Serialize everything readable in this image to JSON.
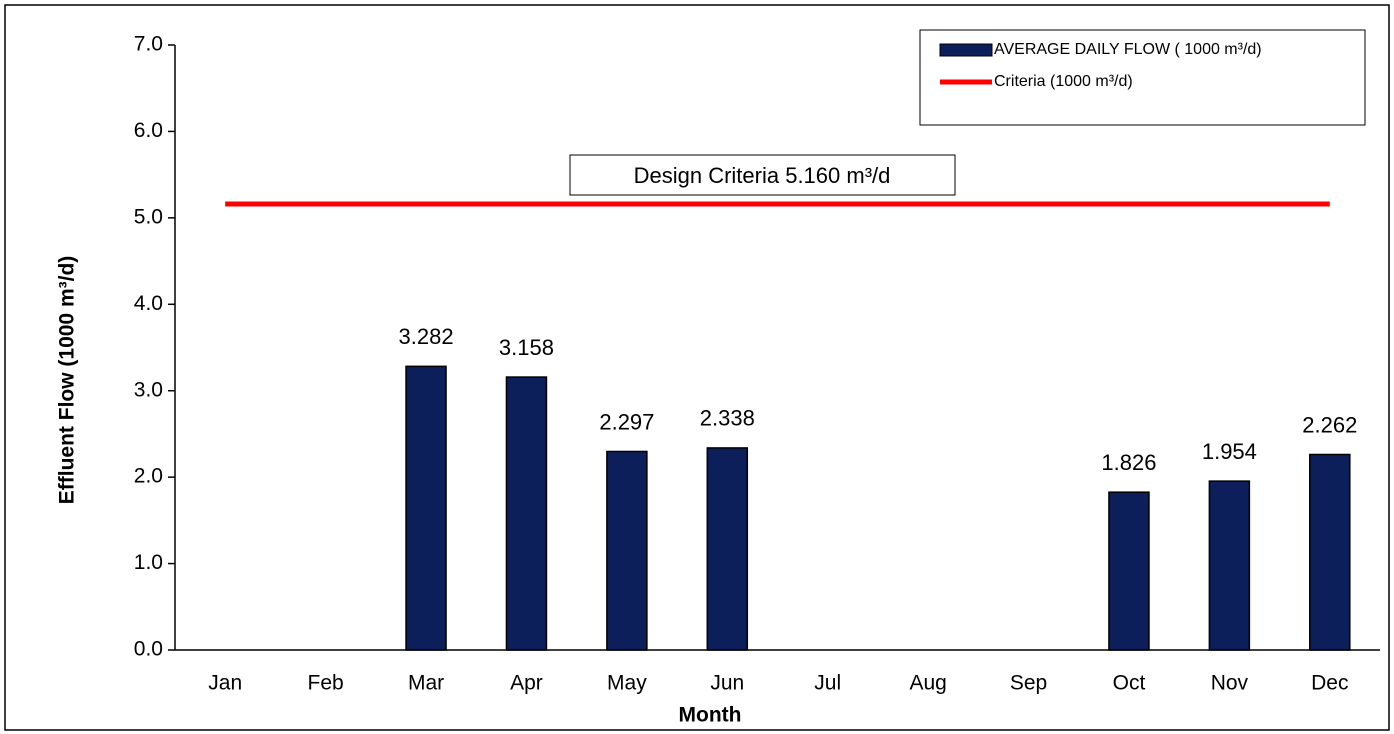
{
  "chart_data": {
    "type": "bar",
    "x_label": "Month",
    "y_label": "Effluent Flow (1000 m³/d)",
    "annotation": "Design Criteria 5.160 m³/d",
    "categories": [
      "Jan",
      "Feb",
      "Mar",
      "Apr",
      "May",
      "Jun",
      "Jul",
      "Aug",
      "Sep",
      "Oct",
      "Nov",
      "Dec"
    ],
    "series": [
      {
        "name": "AVERAGE DAILY FLOW ( 1000 m³/d)",
        "type": "bar",
        "color": "#0c1f5a",
        "values": [
          null,
          null,
          3.282,
          3.158,
          2.297,
          2.338,
          null,
          null,
          null,
          1.826,
          1.954,
          2.262
        ]
      },
      {
        "name": "Criteria (1000 m³/d)",
        "type": "line",
        "color": "#ff0000",
        "values": [
          5.16,
          5.16,
          5.16,
          5.16,
          5.16,
          5.16,
          5.16,
          5.16,
          5.16,
          5.16,
          5.16,
          5.16
        ]
      }
    ],
    "ylim": [
      0,
      7
    ],
    "yticks": [
      {
        "value": 0,
        "label": "0.0"
      },
      {
        "value": 1,
        "label": "1.0"
      },
      {
        "value": 2,
        "label": "2.0"
      },
      {
        "value": 3,
        "label": "3.0"
      },
      {
        "value": 4,
        "label": "4.0"
      },
      {
        "value": 5,
        "label": "5.0"
      },
      {
        "value": 6,
        "label": "6.0"
      },
      {
        "value": 7,
        "label": "7.0"
      }
    ],
    "legend": "top-right"
  }
}
